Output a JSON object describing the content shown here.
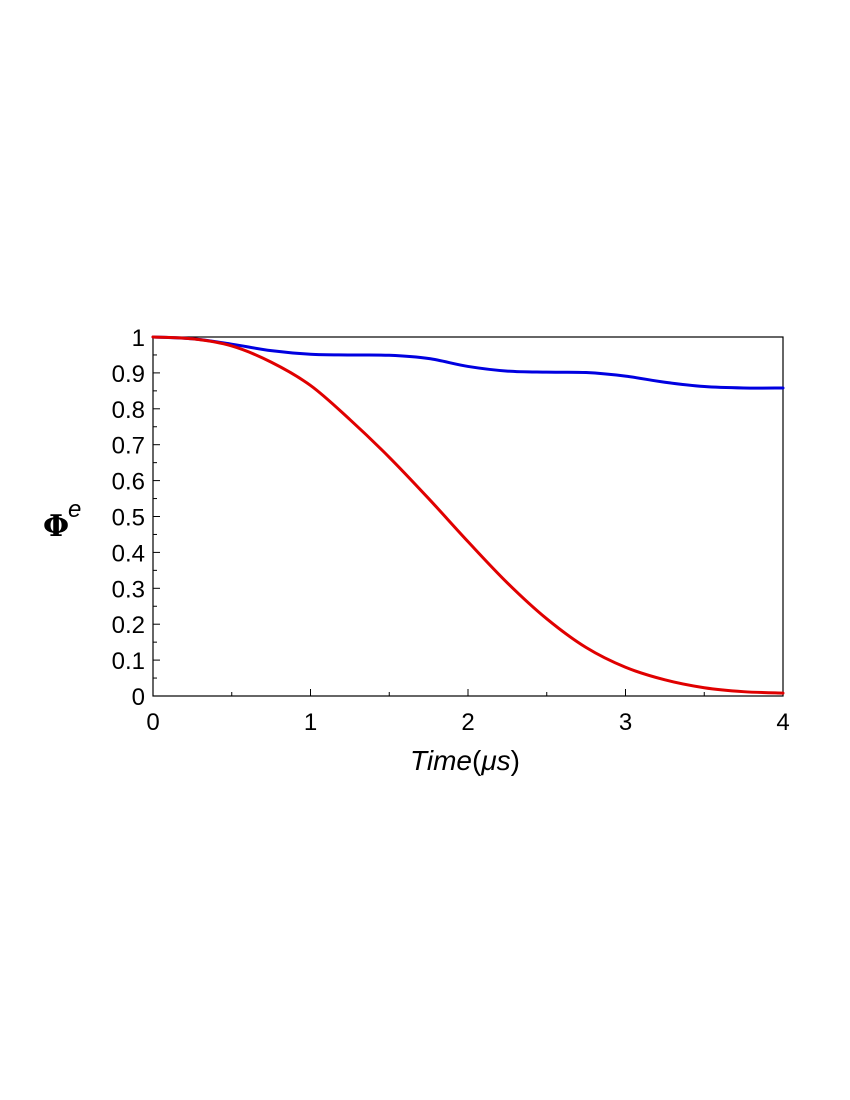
{
  "chart_data": {
    "type": "line",
    "title": "",
    "xlabel": "Time(μs)",
    "xlabel_main": "Time",
    "xlabel_unit": "μs",
    "ylabel": "Φ^e",
    "ylabel_symbol": "Φ",
    "ylabel_superscript": "e",
    "xlim": [
      0,
      4
    ],
    "ylim": [
      0,
      1
    ],
    "xticks": [
      "0",
      "1",
      "2",
      "3",
      "4"
    ],
    "yticks": [
      "0",
      "0.1",
      "0.2",
      "0.3",
      "0.4",
      "0.5",
      "0.6",
      "0.7",
      "0.8",
      "0.9",
      "1"
    ],
    "grid": false,
    "legend": "none",
    "series": [
      {
        "color": "#0000e0",
        "x": [
          0,
          0.25,
          0.5,
          0.75,
          1.0,
          1.25,
          1.5,
          1.75,
          2.0,
          2.25,
          2.5,
          2.75,
          3.0,
          3.25,
          3.5,
          3.75,
          4.0
        ],
        "y": [
          1.0,
          0.995,
          0.98,
          0.962,
          0.952,
          0.95,
          0.949,
          0.94,
          0.918,
          0.905,
          0.902,
          0.901,
          0.891,
          0.874,
          0.862,
          0.858,
          0.858
        ]
      },
      {
        "color": "#e00000",
        "x": [
          0,
          0.25,
          0.5,
          0.75,
          1.0,
          1.25,
          1.5,
          1.75,
          2.0,
          2.25,
          2.5,
          2.75,
          3.0,
          3.25,
          3.5,
          3.75,
          4.0
        ],
        "y": [
          1.0,
          0.995,
          0.975,
          0.93,
          0.865,
          0.77,
          0.665,
          0.55,
          0.43,
          0.315,
          0.215,
          0.135,
          0.08,
          0.045,
          0.023,
          0.012,
          0.008
        ]
      }
    ]
  }
}
